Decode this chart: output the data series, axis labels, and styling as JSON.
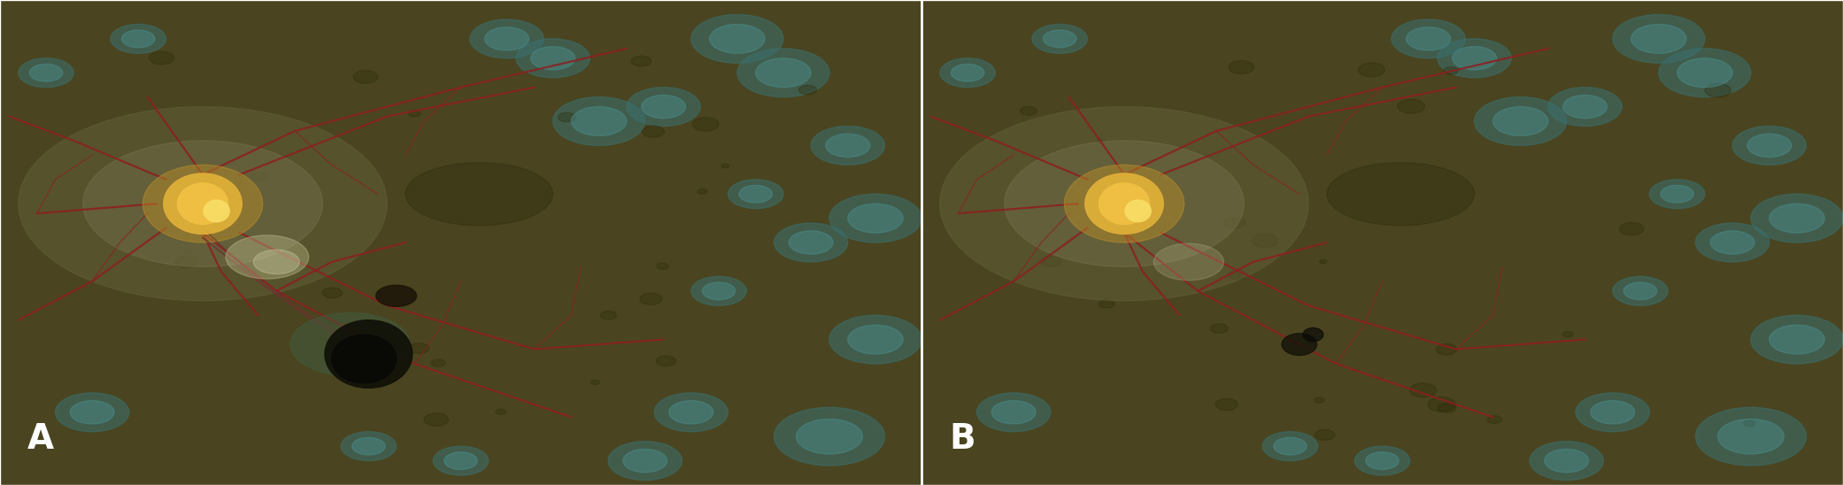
{
  "fig_width": 20.82,
  "fig_height": 5.48,
  "dpi": 100,
  "label_A": "A",
  "label_B": "B",
  "label_color": "white",
  "label_fontsize": 28,
  "label_fontweight": "bold",
  "divider_color": "white",
  "divider_linewidth": 2,
  "border_color": "white",
  "border_linewidth": 1,
  "background_color": "#5a5030"
}
